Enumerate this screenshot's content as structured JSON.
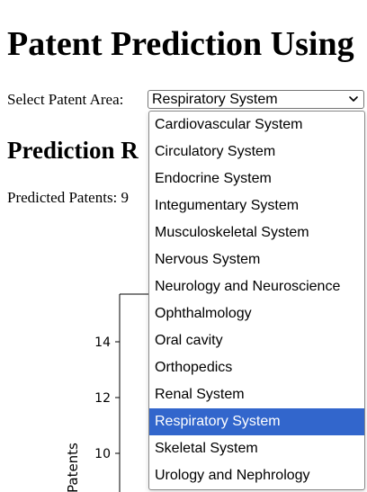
{
  "page_title": "Patent Prediction Using",
  "select": {
    "label": "Select Patent Area:",
    "value": "Respiratory System",
    "options": [
      "Cardiovascular System",
      "Circulatory System",
      "Endocrine System",
      "Integumentary System",
      "Musculoskeletal System",
      "Nervous System",
      "Neurology and Neuroscience",
      "Ophthalmology",
      "Oral cavity",
      "Orthopedics",
      "Renal System",
      "Respiratory System",
      "Skeletal System",
      "Urology and Nephrology"
    ],
    "selected_index": 11
  },
  "section_title": "Prediction R",
  "predicted_text": "Predicted Patents: 9",
  "chart_data": {
    "type": "line",
    "ylabel": "Patents",
    "yticks": [
      14,
      12,
      10
    ],
    "ylim": [
      9.5,
      15.5
    ]
  },
  "colors": {
    "selected_bg": "#3266cc",
    "selected_fg": "#ffffff"
  }
}
